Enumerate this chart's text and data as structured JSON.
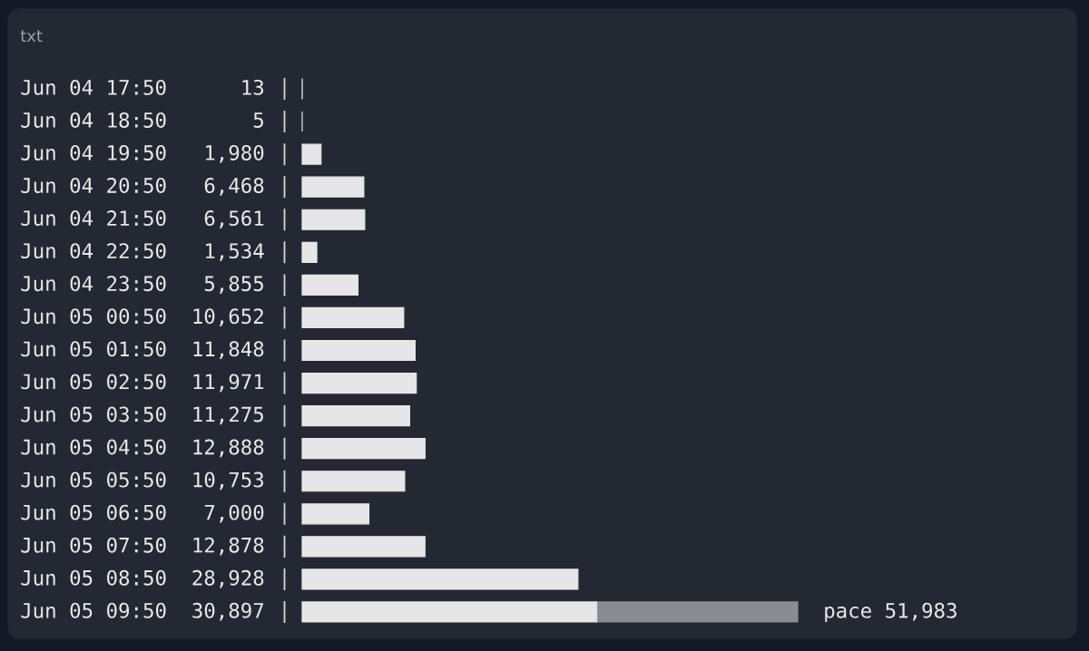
{
  "chart_data": {
    "type": "bar",
    "orientation": "horizontal",
    "stacked": true,
    "tick_labels": "y",
    "categories": [
      "Jun 04 17:50",
      "Jun 04 18:50",
      "Jun 04 19:50",
      "Jun 04 20:50",
      "Jun 04 21:50",
      "Jun 04 22:50",
      "Jun 04 23:50",
      "Jun 05 00:50",
      "Jun 05 01:50",
      "Jun 05 02:50",
      "Jun 05 03:50",
      "Jun 05 04:50",
      "Jun 05 05:50",
      "Jun 05 06:50",
      "Jun 05 07:50",
      "Jun 05 08:50",
      "Jun 05 09:50"
    ],
    "series": [
      {
        "color": "#e6e6e8",
        "values": [
          13,
          5,
          1980,
          6468,
          6561,
          1534,
          5855,
          10652,
          11848,
          11971,
          11275,
          12888,
          10753,
          7000,
          12878,
          28928,
          30897
        ],
        "value_labels": [
          "13",
          "5",
          "1,980",
          "6,468",
          "6,561",
          "1,534",
          "5,855",
          "10,652",
          "11,848",
          "11,971",
          "11,275",
          "12,888",
          "10,753",
          "7,000",
          "12,878",
          "28,928",
          "30,897"
        ]
      },
      {
        "color": "#8a8c91",
        "values": [
          null,
          null,
          null,
          null,
          null,
          null,
          null,
          null,
          null,
          null,
          null,
          null,
          null,
          null,
          null,
          null,
          21086
        ]
      }
    ],
    "annotations": [
      "txt",
      {
        "text": "pace 51,983",
        "x": 51983,
        "y": "Jun 05 09:50"
      }
    ]
  }
}
